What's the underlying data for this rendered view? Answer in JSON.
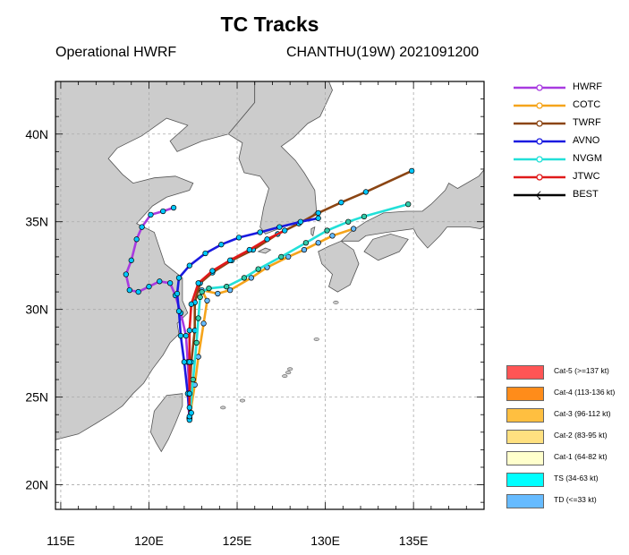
{
  "title": "TC Tracks",
  "subtitle_left": "Operational HWRF",
  "subtitle_right": "CHANTHU(19W) 2021091200",
  "axes": {
    "x_ticks": [
      "115E",
      "120E",
      "125E",
      "130E",
      "135E"
    ],
    "y_ticks": [
      "40N",
      "35N",
      "30N",
      "25N",
      "20N"
    ],
    "lon_range": [
      114.7,
      139
    ],
    "lat_range": [
      18.6,
      43
    ]
  },
  "colors": {
    "ocean": "#ffffff",
    "land": "#cccccc",
    "coast": "#555555",
    "grid": "#aaaaaa"
  },
  "legend_tracks": [
    {
      "name": "HWRF",
      "color": "#a83be0"
    },
    {
      "name": "COTC",
      "color": "#f5a41b"
    },
    {
      "name": "TWRF",
      "color": "#8b4513"
    },
    {
      "name": "AVNO",
      "color": "#1a1ae0"
    },
    {
      "name": "NVGM",
      "color": "#22e0d8"
    },
    {
      "name": "JTWC",
      "color": "#e01a1a"
    },
    {
      "name": "BEST",
      "color": "#000000"
    }
  ],
  "intensity_legend": [
    {
      "label": "Cat-5 (>=137 kt)",
      "color": "#ff5555"
    },
    {
      "label": "Cat-4 (113-136 kt)",
      "color": "#ff8c1a"
    },
    {
      "label": "Cat-3 (96-112 kt)",
      "color": "#ffbf40"
    },
    {
      "label": "Cat-2 (83-95 kt)",
      "color": "#ffe080"
    },
    {
      "label": "Cat-1 (64-82 kt)",
      "color": "#ffffcc"
    },
    {
      "label": "TS (34-63 kt)",
      "color": "#00ffff"
    },
    {
      "label": "TD (<=33 kt)",
      "color": "#66bbff"
    }
  ],
  "tracks": [
    {
      "name": "HWRF",
      "color": "#a83be0",
      "marker": "#00c8ff",
      "points": [
        [
          122.3,
          23.8
        ],
        [
          122.3,
          25.2
        ],
        [
          122.2,
          27.0
        ],
        [
          122.1,
          28.5
        ],
        [
          121.8,
          29.8
        ],
        [
          121.5,
          30.8
        ],
        [
          121.2,
          31.5
        ],
        [
          120.6,
          31.6
        ],
        [
          120.0,
          31.3
        ],
        [
          119.4,
          31.0
        ],
        [
          118.9,
          31.1
        ],
        [
          118.7,
          32.0
        ],
        [
          119.0,
          32.8
        ],
        [
          119.3,
          34.0
        ],
        [
          119.6,
          34.7
        ],
        [
          120.1,
          35.4
        ],
        [
          120.8,
          35.6
        ],
        [
          121.4,
          35.8
        ]
      ]
    },
    {
      "name": "COTC",
      "color": "#f5a41b",
      "marker": "#66bbff",
      "points": [
        [
          122.3,
          23.8
        ],
        [
          122.6,
          25.7
        ],
        [
          122.8,
          27.3
        ],
        [
          123.1,
          29.2
        ],
        [
          123.3,
          30.5
        ],
        [
          123.0,
          31.1
        ],
        [
          123.9,
          30.9
        ],
        [
          124.6,
          31.1
        ],
        [
          125.8,
          31.8
        ],
        [
          126.7,
          32.4
        ],
        [
          127.9,
          33.0
        ],
        [
          128.8,
          33.4
        ],
        [
          129.6,
          33.8
        ],
        [
          130.4,
          34.2
        ],
        [
          131.6,
          34.6
        ]
      ]
    },
    {
      "name": "TWRF",
      "color": "#8b4513",
      "marker": "#00c8ff",
      "points": [
        [
          122.3,
          23.8
        ],
        [
          122.3,
          25.2
        ],
        [
          122.4,
          27.0
        ],
        [
          122.6,
          28.8
        ],
        [
          122.6,
          30.4
        ],
        [
          122.9,
          31.5
        ],
        [
          123.6,
          32.1
        ],
        [
          124.7,
          32.8
        ],
        [
          125.9,
          33.4
        ],
        [
          127.3,
          34.3
        ],
        [
          128.5,
          34.9
        ],
        [
          129.6,
          35.5
        ],
        [
          130.9,
          36.1
        ],
        [
          132.3,
          36.7
        ],
        [
          134.9,
          37.9
        ]
      ]
    },
    {
      "name": "AVNO",
      "color": "#1a1ae0",
      "marker": "#00c8ff",
      "points": [
        [
          122.3,
          23.8
        ],
        [
          122.2,
          25.2
        ],
        [
          122.0,
          27.0
        ],
        [
          121.8,
          28.5
        ],
        [
          121.7,
          29.9
        ],
        [
          121.6,
          30.9
        ],
        [
          121.7,
          31.8
        ],
        [
          122.3,
          32.5
        ],
        [
          123.2,
          33.2
        ],
        [
          124.1,
          33.7
        ],
        [
          125.1,
          34.1
        ],
        [
          126.3,
          34.4
        ],
        [
          127.4,
          34.7
        ],
        [
          128.6,
          35.0
        ],
        [
          129.6,
          35.2
        ]
      ]
    },
    {
      "name": "NVGM",
      "color": "#22e0d8",
      "marker": "#33ccaa",
      "points": [
        [
          122.3,
          23.8
        ],
        [
          122.5,
          26.0
        ],
        [
          122.7,
          28.1
        ],
        [
          122.8,
          29.5
        ],
        [
          122.9,
          30.7
        ],
        [
          123.0,
          31.0
        ],
        [
          123.4,
          31.2
        ],
        [
          124.4,
          31.3
        ],
        [
          125.4,
          31.8
        ],
        [
          126.2,
          32.3
        ],
        [
          127.5,
          33.0
        ],
        [
          128.9,
          33.8
        ],
        [
          130.1,
          34.5
        ],
        [
          131.3,
          35.0
        ],
        [
          132.2,
          35.3
        ],
        [
          134.7,
          36.0
        ]
      ]
    },
    {
      "name": "JTWC",
      "color": "#e01a1a",
      "marker": "#00c8ff",
      "points": [
        [
          122.3,
          23.8
        ],
        [
          122.3,
          25.2
        ],
        [
          122.3,
          27.0
        ],
        [
          122.3,
          28.8
        ],
        [
          122.4,
          30.3
        ],
        [
          122.8,
          31.5
        ],
        [
          123.6,
          32.2
        ],
        [
          124.6,
          32.8
        ],
        [
          125.7,
          33.4
        ],
        [
          126.7,
          34.0
        ],
        [
          127.7,
          34.5
        ]
      ]
    },
    {
      "name": "BEST",
      "color": "#000000",
      "marker": "#00c8ff",
      "points": [
        [
          122.3,
          23.7
        ],
        [
          122.3,
          23.9
        ],
        [
          122.4,
          24.1
        ],
        [
          122.3,
          24.4
        ]
      ]
    }
  ]
}
